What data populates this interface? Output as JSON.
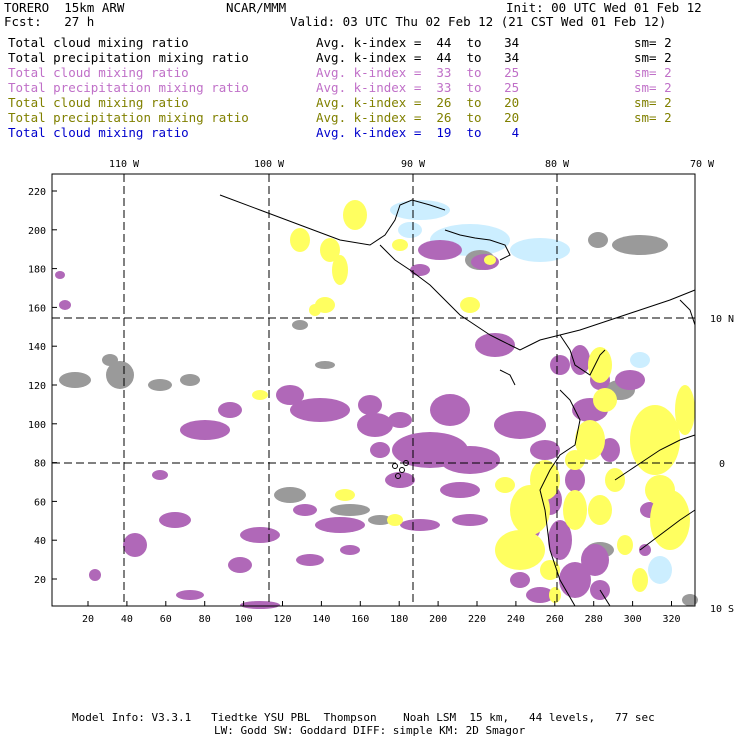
{
  "header": {
    "model": "TORERO  15km ARW",
    "center": "NCAR/MMM",
    "init": "Init: 00 UTC Wed 01 Feb 12",
    "fcst": "Fcst:   27 h",
    "valid": "Valid: 03 UTC Thu 02 Feb 12 (21 CST Wed 01 Feb 12)"
  },
  "legend": [
    {
      "field": "Total cloud mixing ratio",
      "kindex": "Avg. k-index =  44  to   34",
      "sm": "sm= 2",
      "color": "#000000"
    },
    {
      "field": "Total precipitation mixing ratio",
      "kindex": "Avg. k-index =  44  to   34",
      "sm": "sm= 2",
      "color": "#000000"
    },
    {
      "field": "Total cloud mixing ratio",
      "kindex": "Avg. k-index =  33  to   25",
      "sm": "sm= 2",
      "color": "#c070c8"
    },
    {
      "field": "Total precipitation mixing ratio",
      "kindex": "Avg. k-index =  33  to   25",
      "sm": "sm= 2",
      "color": "#c070c8"
    },
    {
      "field": "Total cloud mixing ratio",
      "kindex": "Avg. k-index =  26  to   20",
      "sm": "sm= 2",
      "color": "#808000"
    },
    {
      "field": "Total precipitation mixing ratio",
      "kindex": "Avg. k-index =  26  to   20",
      "sm": "sm= 2",
      "color": "#808000"
    },
    {
      "field": "Total cloud mixing ratio",
      "kindex": "Avg. k-index =  19  to    4",
      "sm": "",
      "color": "#0000cc"
    }
  ],
  "map": {
    "lon_labels": [
      "110 W",
      "100 W",
      "90 W",
      "80 W",
      "70 W"
    ],
    "lat_labels": [
      "10 N",
      "0",
      "10 S"
    ],
    "y_ticks": [
      "20",
      "40",
      "60",
      "80",
      "100",
      "120",
      "140",
      "160",
      "180",
      "200",
      "220"
    ],
    "x_ticks": [
      "20",
      "40",
      "60",
      "80",
      "100",
      "120",
      "140",
      "160",
      "180",
      "200",
      "220",
      "240",
      "260",
      "280",
      "300",
      "320"
    ],
    "colors": {
      "gray": "#9a9a9a",
      "purple": "#b068b8",
      "yellow": "#ffff60",
      "lightblue": "#cceeff"
    }
  },
  "footer": {
    "line1": "Model Info: V3.3.1   Tiedtke YSU PBL  Thompson    Noah LSM  15 km,   44 levels,   77 sec",
    "line2": "LW: Godd SW: Goddard DIFF: simple KM: 2D Smagor"
  }
}
